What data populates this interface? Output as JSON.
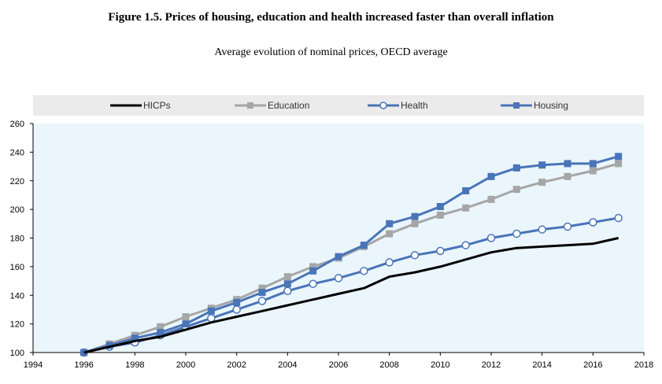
{
  "figure": {
    "title": "Figure 1.5. Prices of housing, education and health increased faster than overall inflation",
    "subtitle": "Average evolution of nominal prices, OECD average"
  },
  "colors": {
    "plot_background": "#EAF6FC",
    "legend_background": "#EBEBEB",
    "hicps": "#000000",
    "education": "#A6A6A6",
    "health": "#4A74B8",
    "housing": "#4A74B8"
  },
  "chart_data": {
    "type": "line",
    "title": "Figure 1.5. Prices of housing, education and health increased faster than overall inflation",
    "subtitle": "Average evolution of nominal prices, OECD average",
    "xlabel": "",
    "ylabel": "",
    "xlim": [
      1994,
      2018
    ],
    "ylim": [
      100,
      260
    ],
    "x_ticks": [
      1994,
      1996,
      1998,
      2000,
      2002,
      2004,
      2006,
      2008,
      2010,
      2012,
      2014,
      2016,
      2018
    ],
    "y_ticks": [
      100,
      120,
      140,
      160,
      180,
      200,
      220,
      240,
      260
    ],
    "grid": false,
    "legend_position": "top",
    "x": [
      1996,
      1997,
      1998,
      1999,
      2000,
      2001,
      2002,
      2003,
      2004,
      2005,
      2006,
      2007,
      2008,
      2009,
      2010,
      2011,
      2012,
      2013,
      2014,
      2015,
      2016,
      2017
    ],
    "series": [
      {
        "name": "HICPs",
        "marker": "none",
        "color": "#000000",
        "values": [
          100,
          104,
          108,
          111,
          116,
          121,
          125,
          129,
          133,
          137,
          141,
          145,
          153,
          156,
          160,
          165,
          170,
          173,
          174,
          175,
          176,
          180
        ]
      },
      {
        "name": "Education",
        "marker": "square",
        "color": "#A6A6A6",
        "values": [
          100,
          106,
          112,
          118,
          125,
          131,
          137,
          145,
          153,
          160,
          166,
          174,
          183,
          190,
          196,
          201,
          207,
          214,
          219,
          223,
          227,
          232
        ]
      },
      {
        "name": "Health",
        "marker": "circle",
        "color": "#4A74B8",
        "values": [
          100,
          104,
          107,
          112,
          118,
          124,
          130,
          136,
          143,
          148,
          152,
          157,
          163,
          168,
          171,
          175,
          180,
          183,
          186,
          188,
          191,
          194
        ]
      },
      {
        "name": "Housing",
        "marker": "square",
        "color": "#4A74B8",
        "values": [
          100,
          105,
          110,
          114,
          120,
          129,
          135,
          142,
          148,
          157,
          167,
          175,
          190,
          195,
          202,
          213,
          223,
          229,
          231,
          232,
          232,
          237
        ]
      }
    ]
  }
}
